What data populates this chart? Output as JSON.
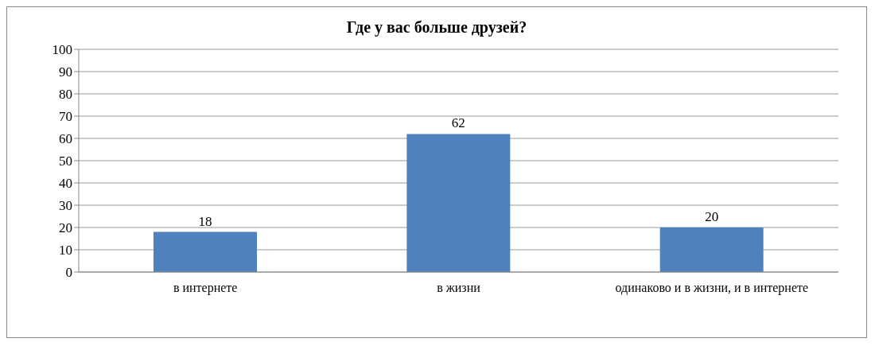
{
  "chart_data": {
    "type": "bar",
    "title": "Где у вас больше друзей?",
    "categories": [
      "в интернете",
      "в жизни",
      "одинаково и в жизни, и в интернете"
    ],
    "values": [
      18,
      62,
      20
    ],
    "color": "#4f81bd",
    "ylim": [
      0,
      100
    ],
    "yticks": [
      0,
      10,
      20,
      30,
      40,
      50,
      60,
      70,
      80,
      90,
      100
    ],
    "grid": "y",
    "data_labels": true
  }
}
